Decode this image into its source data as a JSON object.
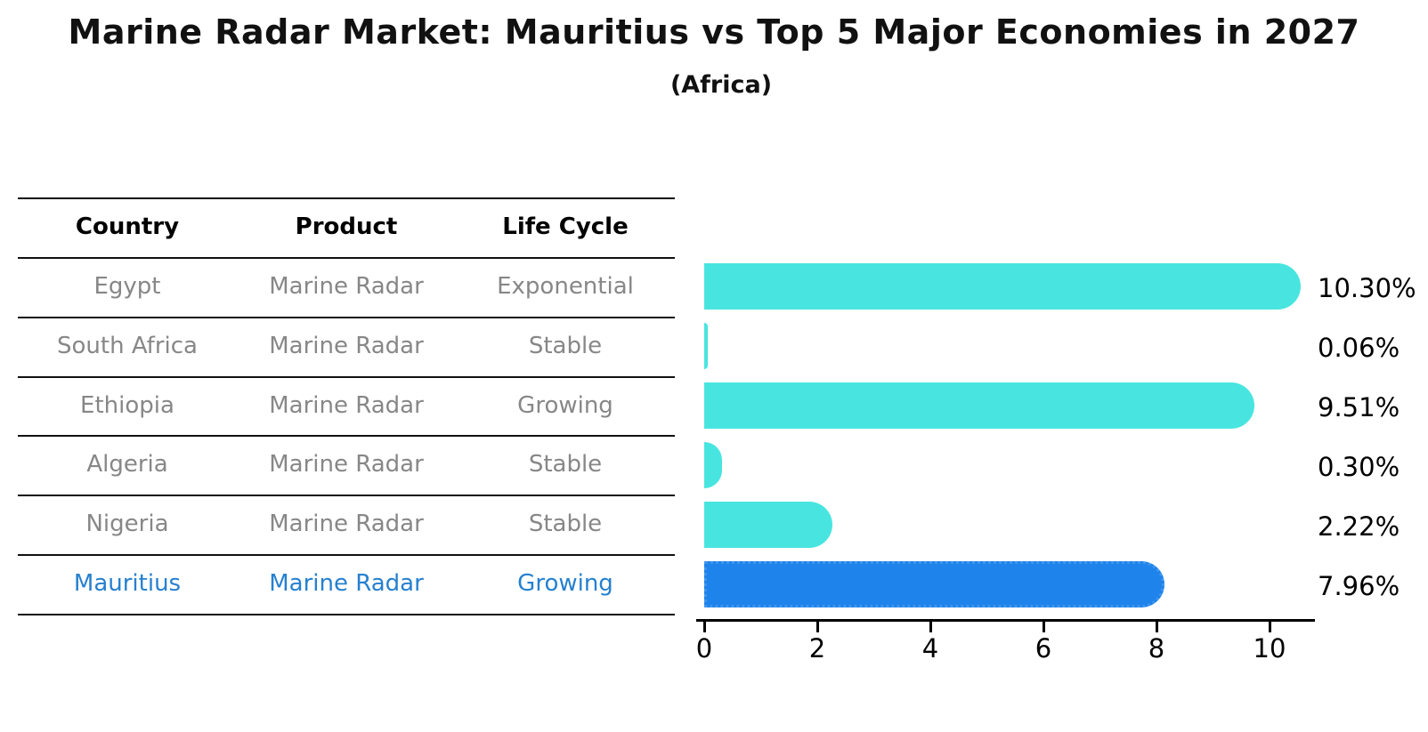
{
  "chart_data": {
    "type": "bar",
    "orientation": "horizontal",
    "title": "Marine Radar Market: Mauritius vs Top 5 Major Economies in 2027",
    "subtitle": "(Africa)",
    "table": {
      "headers": [
        "Country",
        "Product",
        "Life Cycle"
      ],
      "rows": [
        {
          "country": "Egypt",
          "product": "Marine Radar",
          "life_cycle": "Exponential",
          "highlight": false
        },
        {
          "country": "South Africa",
          "product": "Marine Radar",
          "life_cycle": "Stable",
          "highlight": false
        },
        {
          "country": "Ethiopia",
          "product": "Marine Radar",
          "life_cycle": "Growing",
          "highlight": false
        },
        {
          "country": "Algeria",
          "product": "Marine Radar",
          "life_cycle": "Stable",
          "highlight": false
        },
        {
          "country": "Nigeria",
          "product": "Marine Radar",
          "life_cycle": "Stable",
          "highlight": false
        },
        {
          "country": "Mauritius",
          "product": "Marine Radar",
          "life_cycle": "Growing",
          "highlight": true
        }
      ]
    },
    "categories": [
      "Egypt",
      "South Africa",
      "Ethiopia",
      "Algeria",
      "Nigeria",
      "Mauritius"
    ],
    "values": [
      10.3,
      0.06,
      9.51,
      0.3,
      2.22,
      7.96
    ],
    "value_labels": [
      "10.30%",
      "0.06%",
      "9.51%",
      "0.30%",
      "2.22%",
      "7.96%"
    ],
    "x_ticks": [
      "0",
      "2",
      "4",
      "6",
      "8",
      "10"
    ],
    "x_tick_values": [
      0,
      2,
      4,
      6,
      8,
      10
    ],
    "xlim": [
      0,
      10.8
    ],
    "grid": false,
    "legend": null,
    "colors": {
      "bar": "#48e5e0",
      "highlight_bar": "#1e83ea",
      "highlight_border": "#3f96ee",
      "highlight_text": "#2680cf",
      "row_text": "#878787",
      "header_text": "#000000",
      "axis": "#000000"
    }
  }
}
